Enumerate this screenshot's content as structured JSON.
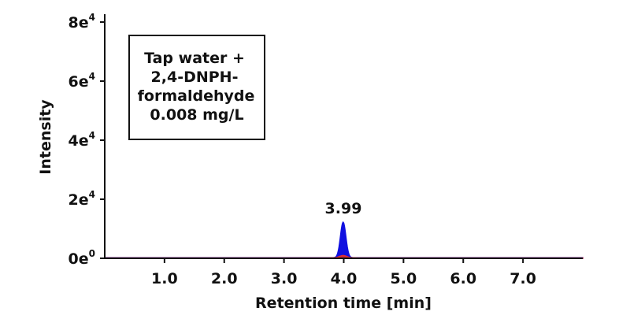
{
  "chart_data": {
    "type": "line",
    "xlabel": "Retention time [min]",
    "ylabel": "Intensity",
    "xlim": [
      0,
      8.0
    ],
    "ylim": [
      0,
      80000
    ],
    "x_ticks": [
      "1.0",
      "2.0",
      "3.0",
      "4.0",
      "5.0",
      "6.0",
      "7.0"
    ],
    "x_tick_values": [
      1.0,
      2.0,
      3.0,
      4.0,
      5.0,
      6.0,
      7.0
    ],
    "y_ticks": [
      {
        "value": 0,
        "base": "0e",
        "exp": "0"
      },
      {
        "value": 20000,
        "base": "2e",
        "exp": "4"
      },
      {
        "value": 40000,
        "base": "4e",
        "exp": "4"
      },
      {
        "value": 60000,
        "base": "6e",
        "exp": "4"
      },
      {
        "value": 80000,
        "base": "8e",
        "exp": "4"
      }
    ],
    "annotation_box": [
      "Tap water +",
      "2,4-DNPH-",
      "formaldehyde",
      "0.008 mg/L"
    ],
    "peaks": [
      {
        "label": "3.99",
        "x": 3.99,
        "y": 12000
      }
    ],
    "series": [
      {
        "color": "#1010e0",
        "baseline": 200,
        "peak_center": 3.99,
        "peak_height": 12000,
        "peak_sigma": 0.045
      },
      {
        "color": "#e03030",
        "baseline": 150,
        "peak_center": 3.99,
        "peak_height": 800,
        "peak_sigma": 0.06
      }
    ],
    "grid": false
  }
}
